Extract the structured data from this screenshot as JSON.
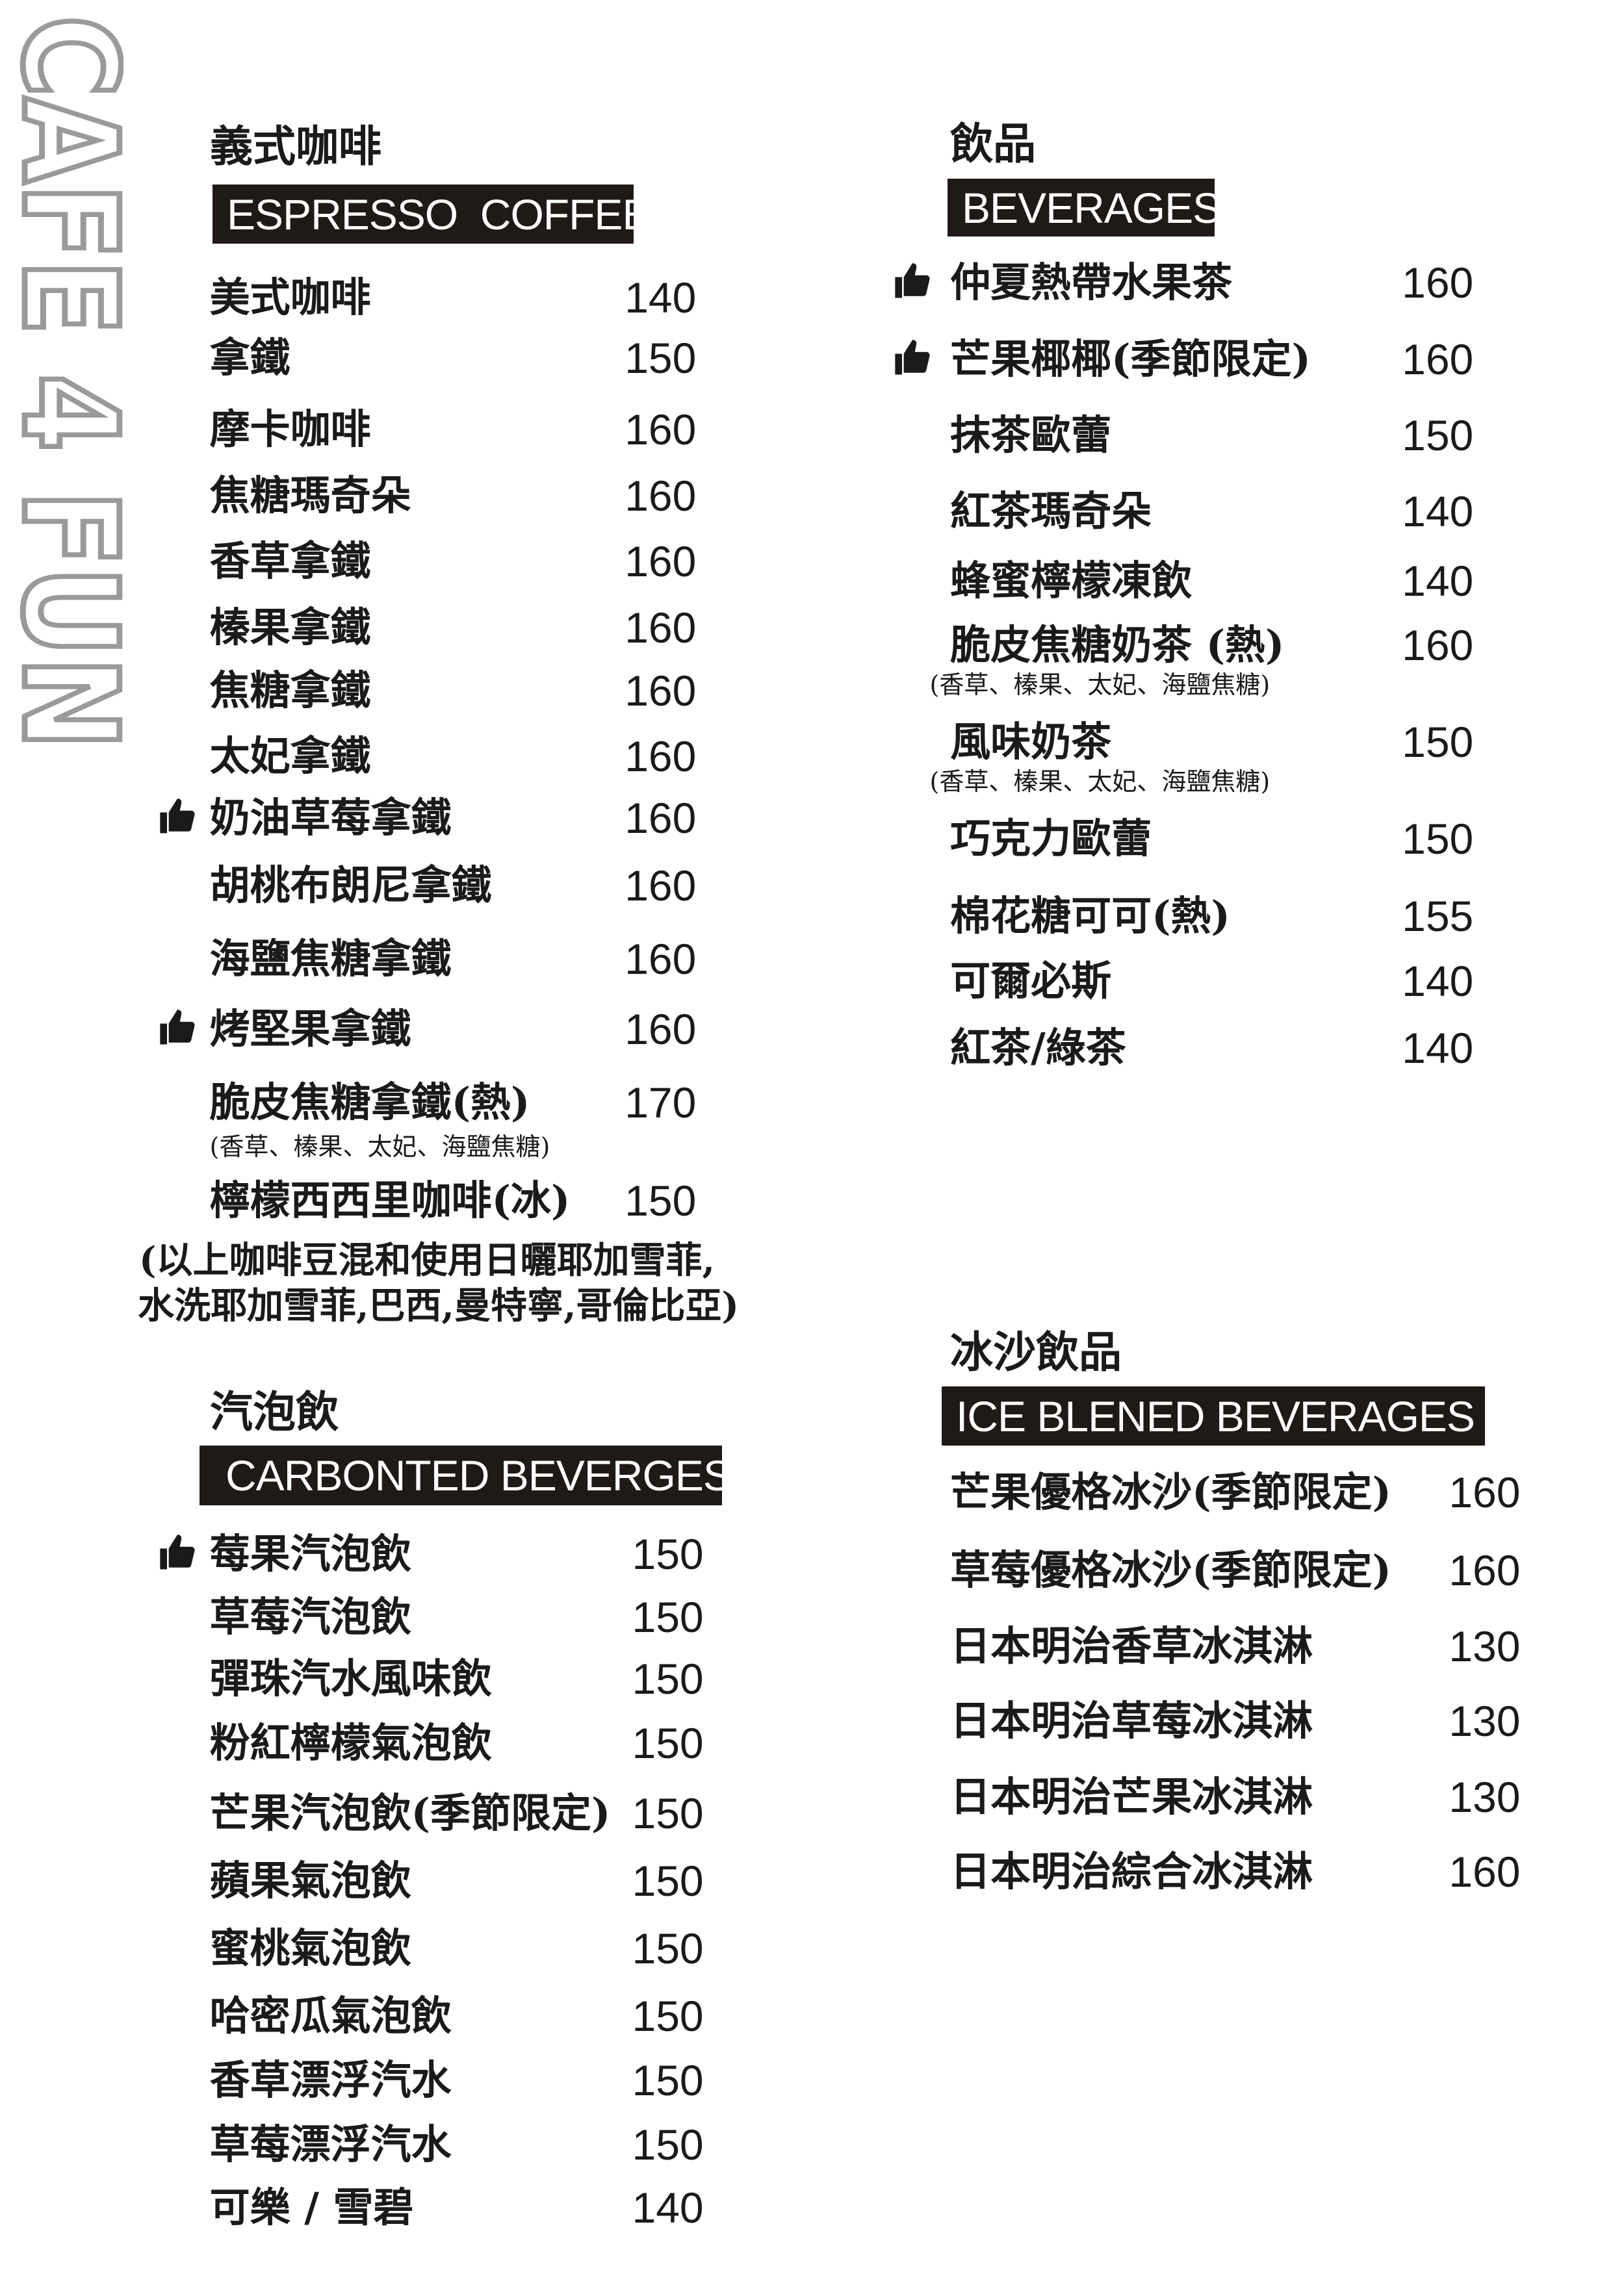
{
  "logo": {
    "text": "CAFE 4 FUN",
    "color": "#9a9a9a"
  },
  "espresso": {
    "title_zh": "義式咖啡",
    "title_en": "ESPRESSO  COFFEE",
    "items": [
      {
        "name": "美式咖啡",
        "price": "140"
      },
      {
        "name": "拿鐵",
        "price": "150"
      },
      {
        "name": "摩卡咖啡",
        "price": "160"
      },
      {
        "name": "焦糖瑪奇朵",
        "price": "160"
      },
      {
        "name": "香草拿鐵",
        "price": "160"
      },
      {
        "name": "榛果拿鐵",
        "price": "160"
      },
      {
        "name": "焦糖拿鐵",
        "price": "160"
      },
      {
        "name": "太妃拿鐵",
        "price": "160"
      },
      {
        "name": "奶油草莓拿鐵",
        "price": "160",
        "recommended": true
      },
      {
        "name": "胡桃布朗尼拿鐵",
        "price": "160"
      },
      {
        "name": "海鹽焦糖拿鐵",
        "price": "160"
      },
      {
        "name": "烤堅果拿鐵",
        "price": "160",
        "recommended": true
      },
      {
        "name": "脆皮焦糖拿鐵(熱)",
        "price": "170",
        "sub": "(香草、榛果、太妃、海鹽焦糖)"
      },
      {
        "name": "檸檬西西里咖啡(冰)",
        "price": "150"
      }
    ],
    "note_line1": "(以上咖啡豆混和使用日曬耶加雪菲,",
    "note_line2": "水洗耶加雪菲,巴西,曼特寧,哥倫比亞)"
  },
  "carbonated": {
    "title_zh": "汽泡飲",
    "title_en": "CARBONTED BEVERGES",
    "items": [
      {
        "name": "莓果汽泡飲",
        "price": "150",
        "recommended": true
      },
      {
        "name": "草莓汽泡飲",
        "price": "150"
      },
      {
        "name": "彈珠汽水風味飲",
        "price": "150"
      },
      {
        "name": "粉紅檸檬氣泡飲",
        "price": "150"
      },
      {
        "name": "芒果汽泡飲(季節限定)",
        "price": "150"
      },
      {
        "name": "蘋果氣泡飲",
        "price": "150"
      },
      {
        "name": "蜜桃氣泡飲",
        "price": "150"
      },
      {
        "name": "哈密瓜氣泡飲",
        "price": "150"
      },
      {
        "name": "香草漂浮汽水",
        "price": "150"
      },
      {
        "name": "草莓漂浮汽水",
        "price": "150"
      },
      {
        "name": "可樂 / 雪碧",
        "price": "140"
      }
    ]
  },
  "beverages": {
    "title_zh": "飲品",
    "title_en": "BEVERAGES",
    "items": [
      {
        "name": "仲夏熱帶水果茶",
        "price": "160",
        "recommended": true
      },
      {
        "name": "芒果椰椰(季節限定)",
        "price": "160",
        "recommended": true
      },
      {
        "name": "抹茶歐蕾",
        "price": "150"
      },
      {
        "name": "紅茶瑪奇朵",
        "price": "140"
      },
      {
        "name": "蜂蜜檸檬凍飲",
        "price": "140"
      },
      {
        "name": "脆皮焦糖奶茶 (熱)",
        "price": "160",
        "sub": "(香草、榛果、太妃、海鹽焦糖)"
      },
      {
        "name": "風味奶茶",
        "price": "150",
        "sub": "(香草、榛果、太妃、海鹽焦糖)"
      },
      {
        "name": "巧克力歐蕾",
        "price": "150"
      },
      {
        "name": "棉花糖可可(熱)",
        "price": "155"
      },
      {
        "name": "可爾必斯",
        "price": "140"
      },
      {
        "name": "紅茶/綠茶",
        "price": "140"
      }
    ]
  },
  "ice_blended": {
    "title_zh": "冰沙飲品",
    "title_en": "ICE BLENED BEVERAGES",
    "items": [
      {
        "name": "芒果優格冰沙(季節限定)",
        "price": "160"
      },
      {
        "name": "草莓優格冰沙(季節限定)",
        "price": "160"
      },
      {
        "name": "日本明治香草冰淇淋",
        "price": "130"
      },
      {
        "name": "日本明治草莓冰淇淋",
        "price": "130"
      },
      {
        "name": "日本明治芒果冰淇淋",
        "price": "130"
      },
      {
        "name": "日本明治綜合冰淇淋",
        "price": "160"
      }
    ]
  }
}
